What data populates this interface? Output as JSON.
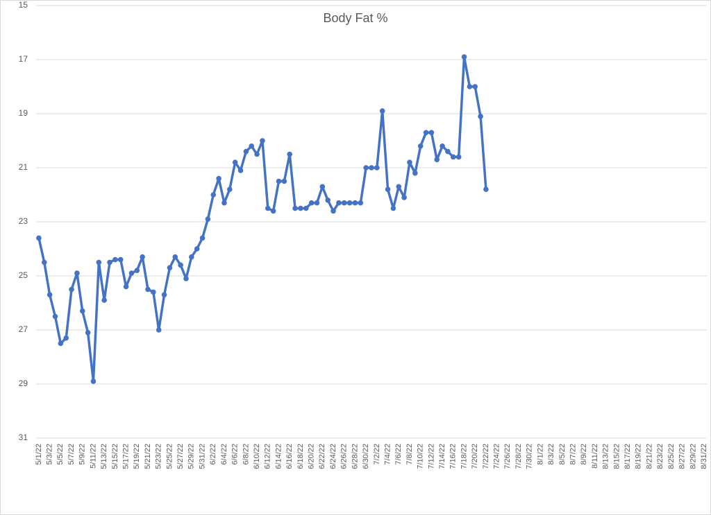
{
  "chart_data": {
    "type": "line",
    "title": "Body Fat %",
    "categories": [
      "5/1/22",
      null,
      "5/3/22",
      null,
      "5/5/22",
      null,
      "5/7/22",
      null,
      "5/9/22",
      null,
      "5/11/22",
      null,
      "5/13/22",
      null,
      "5/15/22",
      null,
      "5/17/22",
      null,
      "5/19/22",
      null,
      "5/21/22",
      null,
      "5/23/22",
      null,
      "5/25/22",
      null,
      "5/27/22",
      null,
      "5/29/22",
      null,
      "5/31/22",
      null,
      "6/2/22",
      null,
      "6/4/22",
      null,
      "6/6/22",
      null,
      "6/8/22",
      null,
      "6/10/22",
      null,
      "6/12/22",
      null,
      "6/14/22",
      null,
      "6/16/22",
      null,
      "6/18/22",
      null,
      "6/20/22",
      null,
      "6/22/22",
      null,
      "6/24/22",
      null,
      "6/26/22",
      null,
      "6/28/22",
      null,
      "6/30/22",
      null,
      "7/2/22",
      null,
      "7/4/22",
      null,
      "7/6/22",
      null,
      "7/8/22",
      null,
      "7/10/22",
      null,
      "7/12/22",
      null,
      "7/14/22",
      null,
      "7/16/22",
      null,
      "7/18/22",
      null,
      "7/20/22",
      null,
      "7/22/22",
      null,
      "7/24/22",
      null,
      "7/26/22",
      null,
      "7/28/22",
      null,
      "7/30/22",
      null,
      "8/1/22",
      null,
      "8/3/22",
      null,
      "8/5/22",
      null,
      "8/7/22",
      null,
      "8/9/22",
      null,
      "8/11/22",
      null,
      "8/13/22",
      null,
      "8/15/22",
      null,
      "8/17/22",
      null,
      "8/19/22",
      null,
      "8/21/22",
      null,
      "8/23/22",
      null,
      "8/25/22",
      null,
      "8/27/22",
      null,
      "8/29/22",
      null,
      "8/31/22"
    ],
    "series": [
      {
        "name": "Body Fat %",
        "color": "#4472c4",
        "values": [
          23.6,
          24.5,
          25.7,
          26.5,
          27.5,
          27.3,
          25.5,
          24.9,
          26.3,
          27.1,
          28.9,
          24.5,
          25.9,
          24.5,
          24.4,
          24.4,
          25.4,
          24.9,
          24.8,
          24.3,
          25.5,
          25.6,
          27.0,
          25.7,
          24.7,
          24.3,
          24.6,
          25.1,
          24.3,
          24.0,
          23.6,
          22.9,
          22.0,
          21.4,
          22.3,
          21.8,
          20.8,
          21.1,
          20.4,
          20.2,
          20.5,
          20.0,
          22.5,
          22.6,
          21.5,
          21.5,
          20.5,
          22.5,
          22.5,
          22.5,
          22.3,
          22.3,
          21.7,
          22.2,
          22.6,
          22.3,
          22.3,
          22.3,
          22.3,
          22.3,
          21.0,
          21.0,
          21.0,
          18.9,
          21.8,
          22.5,
          21.7,
          22.1,
          20.8,
          21.2,
          20.2,
          19.7,
          19.7,
          20.7,
          20.2,
          20.4,
          20.6,
          20.6,
          16.9,
          18.0,
          18.0,
          19.1,
          21.8,
          null,
          null,
          null,
          null,
          null,
          null,
          null,
          null,
          null,
          null,
          null,
          null,
          null,
          null,
          null,
          null,
          null,
          null,
          null,
          null,
          null,
          null,
          null,
          null,
          null,
          null,
          null,
          null,
          null,
          null,
          null,
          null,
          null,
          null,
          null,
          null,
          null,
          null,
          null,
          null
        ]
      }
    ],
    "ylim": [
      15,
      31
    ],
    "y_inverted": true,
    "yticks": [
      15,
      17,
      19,
      21,
      23,
      25,
      27,
      29,
      31
    ],
    "grid": true
  }
}
